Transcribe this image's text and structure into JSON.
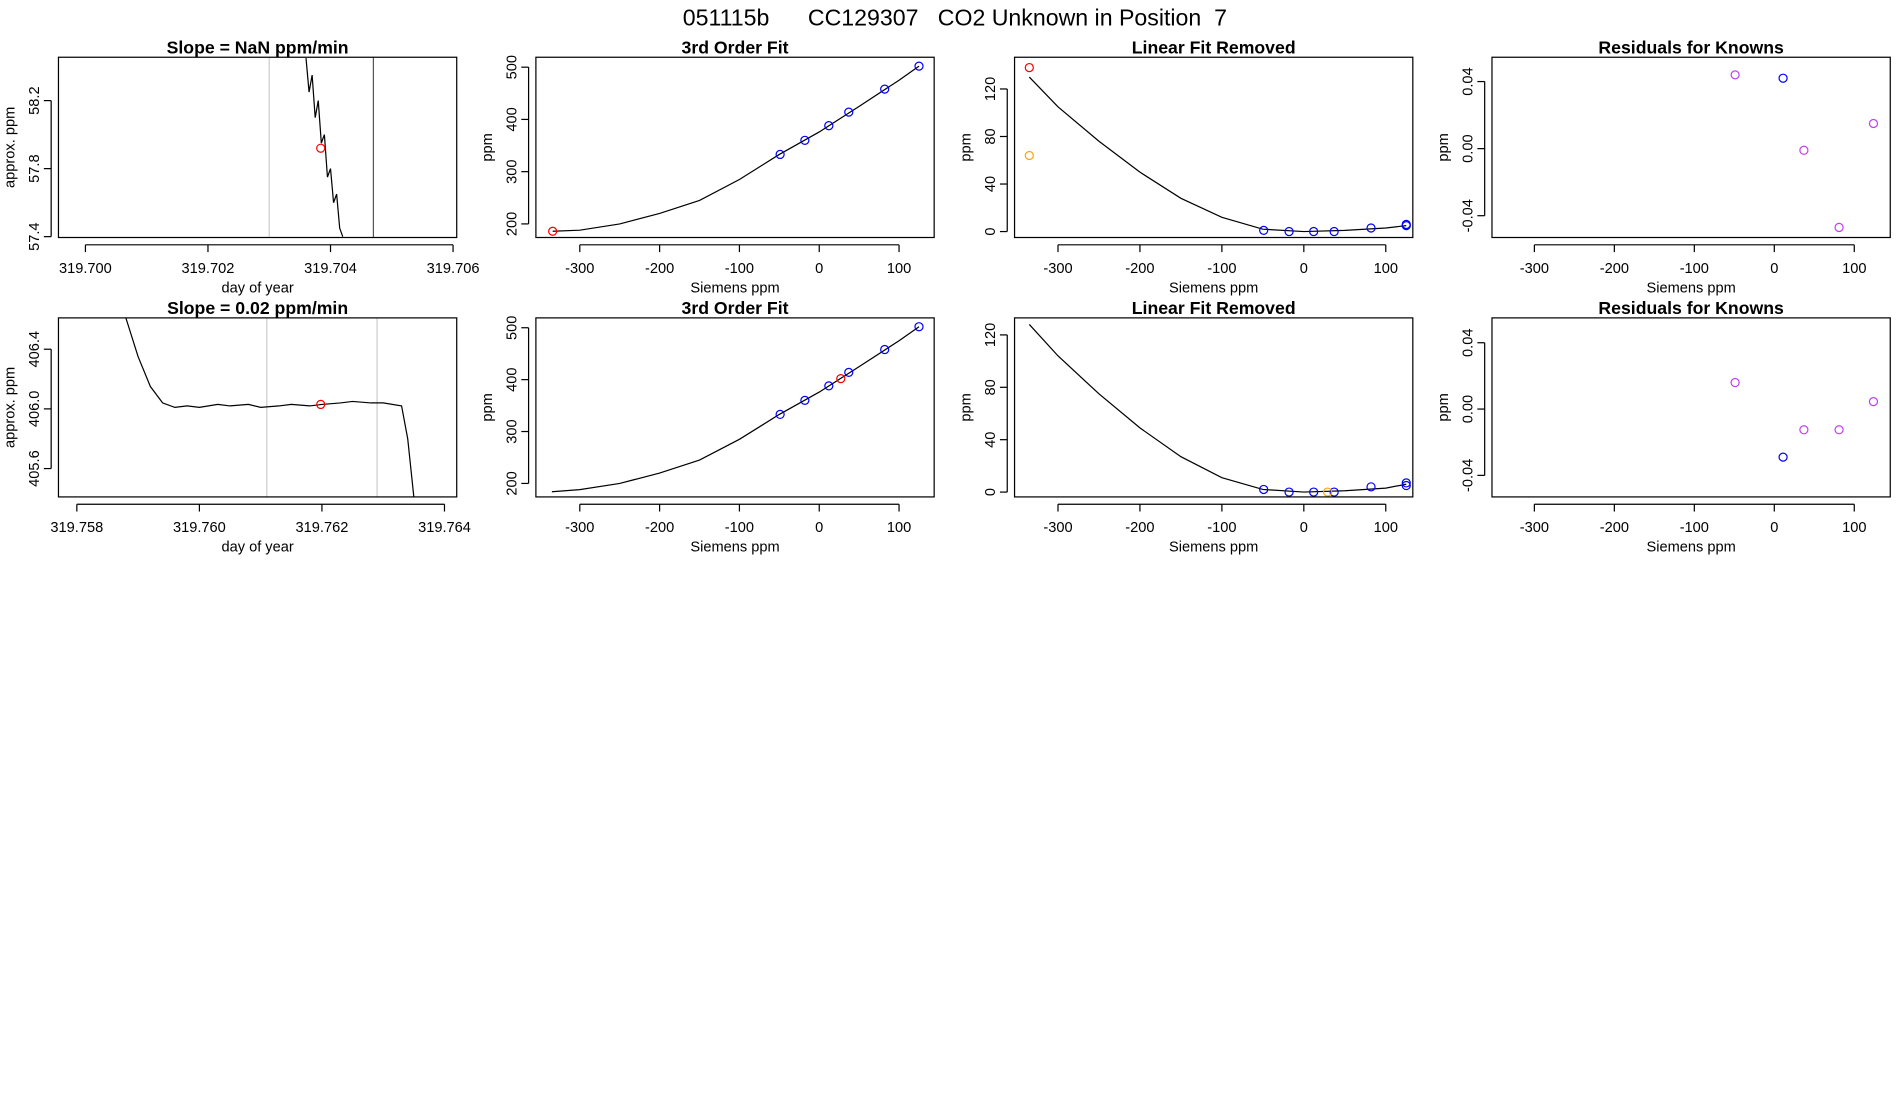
{
  "title": "051115b      CC129307   CO2 Unknown in Position  7",
  "chart_data": [
    {
      "type": "line",
      "title": "Slope =  NaN  ppm/min",
      "xlabel": "day of year",
      "ylabel": "approx. ppm",
      "xlim": [
        319.69956,
        319.70606
      ],
      "ylim": [
        57.395,
        58.455
      ],
      "xticks": [
        {
          "value": 319.7,
          "label": "319.700"
        },
        319.702,
        319.704,
        319.706
      ],
      "yticks": [
        57.4,
        57.8,
        58.2
      ],
      "vlines": [
        {
          "value": 319.703,
          "color": "#cccccc"
        },
        {
          "value": 319.7047,
          "color": "#555555"
        }
      ],
      "series": [
        {
          "type": "line",
          "color": "#000000",
          "x": [
            319.7036,
            319.70365,
            319.7037,
            319.70375,
            319.7038,
            319.70385,
            319.7039,
            319.70395,
            319.704,
            319.70405,
            319.7041,
            319.70415,
            319.7042
          ],
          "values": [
            58.45,
            58.25,
            58.35,
            58.1,
            58.2,
            57.95,
            58.0,
            57.75,
            57.8,
            57.6,
            57.65,
            57.45,
            57.4
          ]
        },
        {
          "type": "scatter",
          "color": "#ff0000",
          "x": [
            319.70384
          ],
          "values": [
            57.92
          ]
        }
      ]
    },
    {
      "type": "scatter",
      "title": "3rd Order Fit",
      "xlabel": "Siemens ppm",
      "ylabel": "ppm",
      "xlim": [
        -355,
        144
      ],
      "ylim": [
        174,
        519
      ],
      "xticks": [
        -300,
        -200,
        -100,
        0,
        100
      ],
      "yticks": [
        200,
        300,
        400,
        500
      ],
      "series": [
        {
          "type": "line",
          "color": "#000000",
          "x": [
            -334,
            -300,
            -250,
            -200,
            -150,
            -100,
            -50,
            0,
            50,
            100,
            125
          ],
          "values": [
            186,
            188,
            200,
            220,
            245,
            285,
            333,
            376,
            425,
            475,
            502
          ]
        },
        {
          "type": "scatter",
          "color": "#0000ff",
          "x": [
            -49,
            -18,
            12,
            37,
            82,
            125
          ],
          "values": [
            333,
            360,
            388,
            414,
            458,
            502
          ]
        },
        {
          "type": "scatter",
          "color": "#ff0000",
          "x": [
            -334
          ],
          "values": [
            186
          ]
        }
      ]
    },
    {
      "type": "scatter",
      "title": "Linear Fit Removed",
      "xlabel": "Siemens ppm",
      "ylabel": "ppm",
      "xlim": [
        -353,
        133
      ],
      "ylim": [
        -5,
        146.7
      ],
      "xticks": [
        -300,
        -200,
        -100,
        0,
        100
      ],
      "yticks": [
        0,
        40,
        80,
        120
      ],
      "series": [
        {
          "type": "line",
          "color": "#000000",
          "x": [
            -335,
            -300,
            -250,
            -200,
            -150,
            -100,
            -50,
            0,
            50,
            100,
            125
          ],
          "values": [
            130,
            105,
            76,
            50,
            28,
            12,
            2,
            0,
            1,
            3,
            5
          ]
        },
        {
          "type": "scatter",
          "color": "#0000ff",
          "x": [
            -49,
            -18,
            12,
            37,
            82,
            125,
            125
          ],
          "values": [
            1,
            0,
            0,
            0,
            3,
            5,
            6
          ]
        },
        {
          "type": "scatter",
          "color": "#ff0000",
          "x": [
            -335
          ],
          "values": [
            138
          ]
        },
        {
          "type": "scatter",
          "color": "#ffa500",
          "x": [
            -335
          ],
          "values": [
            64
          ]
        }
      ]
    },
    {
      "type": "scatter",
      "title": "Residuals for Knowns",
      "xlabel": "Siemens ppm",
      "ylabel": "ppm",
      "xlim": [
        -353,
        145
      ],
      "ylim": [
        -0.053,
        0.0545
      ],
      "xticks": [
        -300,
        -200,
        -100,
        0,
        100
      ],
      "yticks": [
        -0.04,
        {
          "value": 0,
          "label": "0.00"
        },
        0.04
      ],
      "series": [
        {
          "type": "scatter",
          "color": "#c040f0",
          "x": [
            -49,
            37,
            81,
            124
          ],
          "values": [
            0.044,
            -0.001,
            -0.047,
            0.015
          ]
        },
        {
          "type": "scatter",
          "color": "#0000ff",
          "x": [
            11
          ],
          "values": [
            0.042
          ]
        }
      ]
    },
    {
      "type": "line",
      "title": "Slope =  0.02  ppm/min",
      "xlabel": "day of year",
      "ylabel": "approx. ppm",
      "xlim": [
        319.7577,
        319.7642
      ],
      "ylim": [
        405.41,
        406.61
      ],
      "xticks": [
        319.758,
        {
          "value": 319.76,
          "label": "319.760"
        },
        319.762,
        319.764
      ],
      "yticks": [
        405.6,
        {
          "value": 406,
          "label": "406.0"
        },
        406.4
      ],
      "vlines": [
        {
          "value": 319.7611,
          "color": "#cccccc"
        },
        {
          "value": 319.7629,
          "color": "#cccccc"
        }
      ],
      "series": [
        {
          "type": "line",
          "color": "#000000",
          "x": [
            319.7588,
            319.759,
            319.7592,
            319.7594,
            319.7596,
            319.7598,
            319.76,
            319.7603,
            319.7605,
            319.7608,
            319.761,
            319.7613,
            319.7615,
            319.7618,
            319.762,
            319.7623,
            319.7625,
            319.7628,
            319.763,
            319.7633,
            319.7634,
            319.7635
          ],
          "values": [
            406.61,
            406.35,
            406.15,
            406.04,
            406.01,
            406.02,
            406.01,
            406.03,
            406.02,
            406.03,
            406.01,
            406.02,
            406.03,
            406.02,
            406.03,
            406.04,
            406.05,
            406.04,
            406.04,
            406.02,
            405.8,
            405.41
          ]
        },
        {
          "type": "scatter",
          "color": "#ff0000",
          "x": [
            319.76198
          ],
          "values": [
            406.03
          ]
        }
      ]
    },
    {
      "type": "scatter",
      "title": "3rd Order Fit",
      "xlabel": "Siemens ppm",
      "ylabel": "ppm",
      "xlim": [
        -355,
        144
      ],
      "ylim": [
        174,
        519
      ],
      "xticks": [
        -300,
        -200,
        -100,
        0,
        100
      ],
      "yticks": [
        200,
        300,
        400,
        500
      ],
      "series": [
        {
          "type": "line",
          "color": "#000000",
          "x": [
            -335,
            -300,
            -250,
            -200,
            -150,
            -100,
            -50,
            0,
            50,
            100,
            125
          ],
          "values": [
            184,
            188,
            200,
            220,
            245,
            285,
            333,
            376,
            425,
            475,
            502
          ]
        },
        {
          "type": "scatter",
          "color": "#0000ff",
          "x": [
            -49,
            -18,
            12,
            37,
            82,
            125
          ],
          "values": [
            333,
            360,
            388,
            414,
            458,
            502
          ]
        },
        {
          "type": "scatter",
          "color": "#ff0000",
          "x": [
            27
          ],
          "values": [
            402
          ]
        }
      ]
    },
    {
      "type": "scatter",
      "title": "Linear Fit Removed",
      "xlabel": "Siemens ppm",
      "ylabel": "ppm",
      "xlim": [
        -353,
        133
      ],
      "ylim": [
        -3.7,
        133
      ],
      "xticks": [
        -300,
        -200,
        -100,
        0,
        100
      ],
      "yticks": [
        0,
        40,
        80,
        120
      ],
      "series": [
        {
          "type": "line",
          "color": "#000000",
          "x": [
            -335,
            -300,
            -250,
            -200,
            -150,
            -100,
            -50,
            0,
            50,
            100,
            125
          ],
          "values": [
            128,
            104,
            75,
            49,
            27,
            11,
            2,
            0,
            1,
            3,
            6
          ]
        },
        {
          "type": "scatter",
          "color": "#0000ff",
          "x": [
            -49,
            -18,
            12,
            37,
            82,
            125,
            125
          ],
          "values": [
            2,
            0,
            0,
            0,
            4,
            7,
            5
          ]
        },
        {
          "type": "scatter",
          "color": "#ffa500",
          "x": [
            29
          ],
          "values": [
            0
          ]
        }
      ]
    },
    {
      "type": "scatter",
      "title": "Residuals for Knowns",
      "xlabel": "Siemens ppm",
      "ylabel": "ppm",
      "xlim": [
        -353,
        145
      ],
      "ylim": [
        -0.053,
        0.055
      ],
      "xticks": [
        -300,
        -200,
        -100,
        0,
        100
      ],
      "yticks": [
        -0.04,
        {
          "value": 0,
          "label": "0.00"
        },
        0.04
      ],
      "series": [
        {
          "type": "scatter",
          "color": "#c040f0",
          "x": [
            -49,
            37,
            81,
            124
          ],
          "values": [
            0.016,
            -0.0125,
            -0.0125,
            0.0045
          ]
        },
        {
          "type": "scatter",
          "color": "#0000ff",
          "x": [
            11
          ],
          "values": [
            -0.029
          ]
        }
      ]
    }
  ]
}
